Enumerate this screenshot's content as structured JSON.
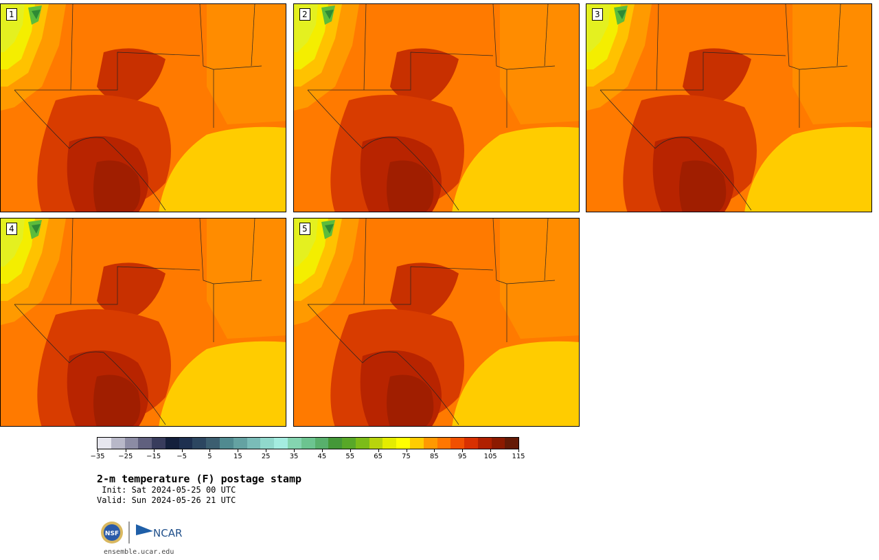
{
  "panels": [
    {
      "label": "1"
    },
    {
      "label": "2"
    },
    {
      "label": "3"
    },
    {
      "label": "4"
    },
    {
      "label": "5"
    }
  ],
  "colorbar": {
    "colors": [
      "#e6e6ee",
      "#b8b8c8",
      "#8c8ca4",
      "#60607e",
      "#383c5c",
      "#14203c",
      "#1e3050",
      "#2c4660",
      "#3c5e70",
      "#508a90",
      "#64a2a2",
      "#7abcb8",
      "#90d8cc",
      "#a4ece0",
      "#84d4b0",
      "#6cc490",
      "#58b06c",
      "#449838",
      "#58a828",
      "#7cbc18",
      "#b8d40c",
      "#e4ec00",
      "#ffff00",
      "#ffcc00",
      "#ff9900",
      "#ff7700",
      "#f05000",
      "#d83000",
      "#b02000",
      "#8c1a00",
      "#641a06"
    ],
    "ticks": [
      "−35",
      "−25",
      "−15",
      "−5",
      "5",
      "15",
      "25",
      "35",
      "45",
      "55",
      "65",
      "75",
      "85",
      "95",
      "105",
      "115"
    ]
  },
  "title": "2-m temperature (F) postage stamp",
  "init": " Init: Sat 2024-05-25 00 UTC",
  "valid": "Valid: Sun 2024-05-26 21 UTC",
  "logos": {
    "nsf": "NSF",
    "ncar": "NCAR"
  },
  "url": "ensemble.ucar.edu"
}
